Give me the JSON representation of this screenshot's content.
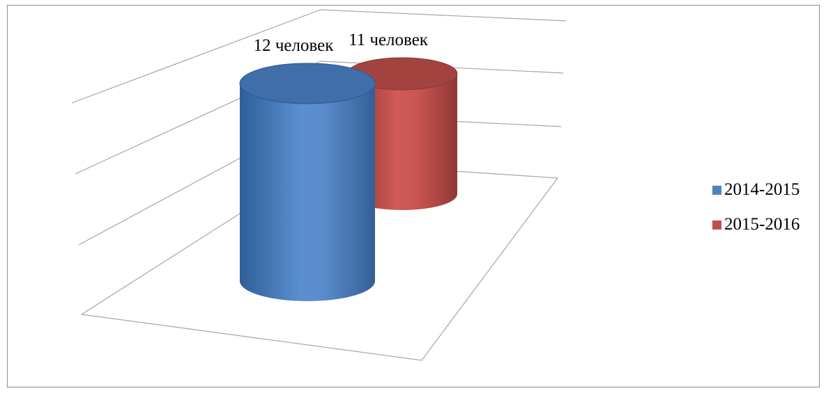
{
  "chart_data": {
    "type": "bar",
    "shape": "cylinder-3d",
    "categories": [
      ""
    ],
    "series": [
      {
        "name": "2014-2015",
        "values": [
          12
        ],
        "label": "12 человек",
        "color": "#4f81bd"
      },
      {
        "name": "2015-2016",
        "values": [
          11
        ],
        "label": "11 человек",
        "color": "#c0504d"
      }
    ],
    "title": "",
    "xlabel": "",
    "ylabel": "",
    "grid": true,
    "legend_position": "right"
  }
}
